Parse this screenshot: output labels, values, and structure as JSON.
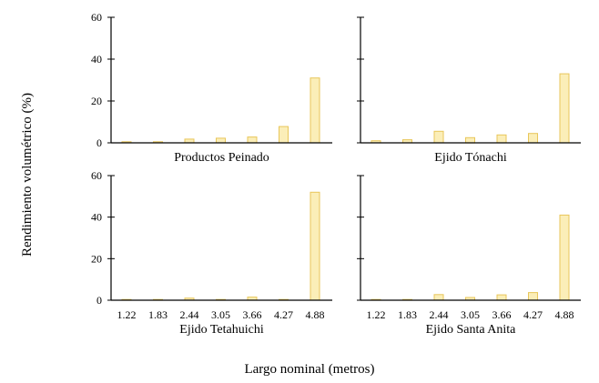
{
  "chart_data": {
    "type": "bar",
    "xlabel": "Largo nominal (metros)",
    "ylabel": "Rendimiento volumétrico (%)",
    "ylim": [
      0,
      60
    ],
    "yticks": [
      "0",
      "20",
      "40",
      "60"
    ],
    "categories": [
      "1.22",
      "1.83",
      "2.44",
      "3.05",
      "3.66",
      "4.27",
      "4.88"
    ],
    "bar_fill": "#fbeeb8",
    "bar_stroke": "#e8c65a",
    "panels": [
      {
        "title": "Productos Peinado",
        "values": [
          0.5,
          0.5,
          1.8,
          2.2,
          2.8,
          7.8,
          31
        ]
      },
      {
        "title": "Ejido Tónachi",
        "values": [
          1.0,
          1.5,
          5.5,
          2.5,
          3.8,
          4.5,
          33
        ]
      },
      {
        "title": "Ejido Tetahuichi",
        "values": [
          0,
          0,
          1.0,
          0,
          1.5,
          0,
          52
        ]
      },
      {
        "title": "Ejido Santa Anita",
        "values": [
          0,
          0.2,
          2.7,
          1.3,
          2.6,
          3.7,
          41
        ]
      }
    ]
  }
}
